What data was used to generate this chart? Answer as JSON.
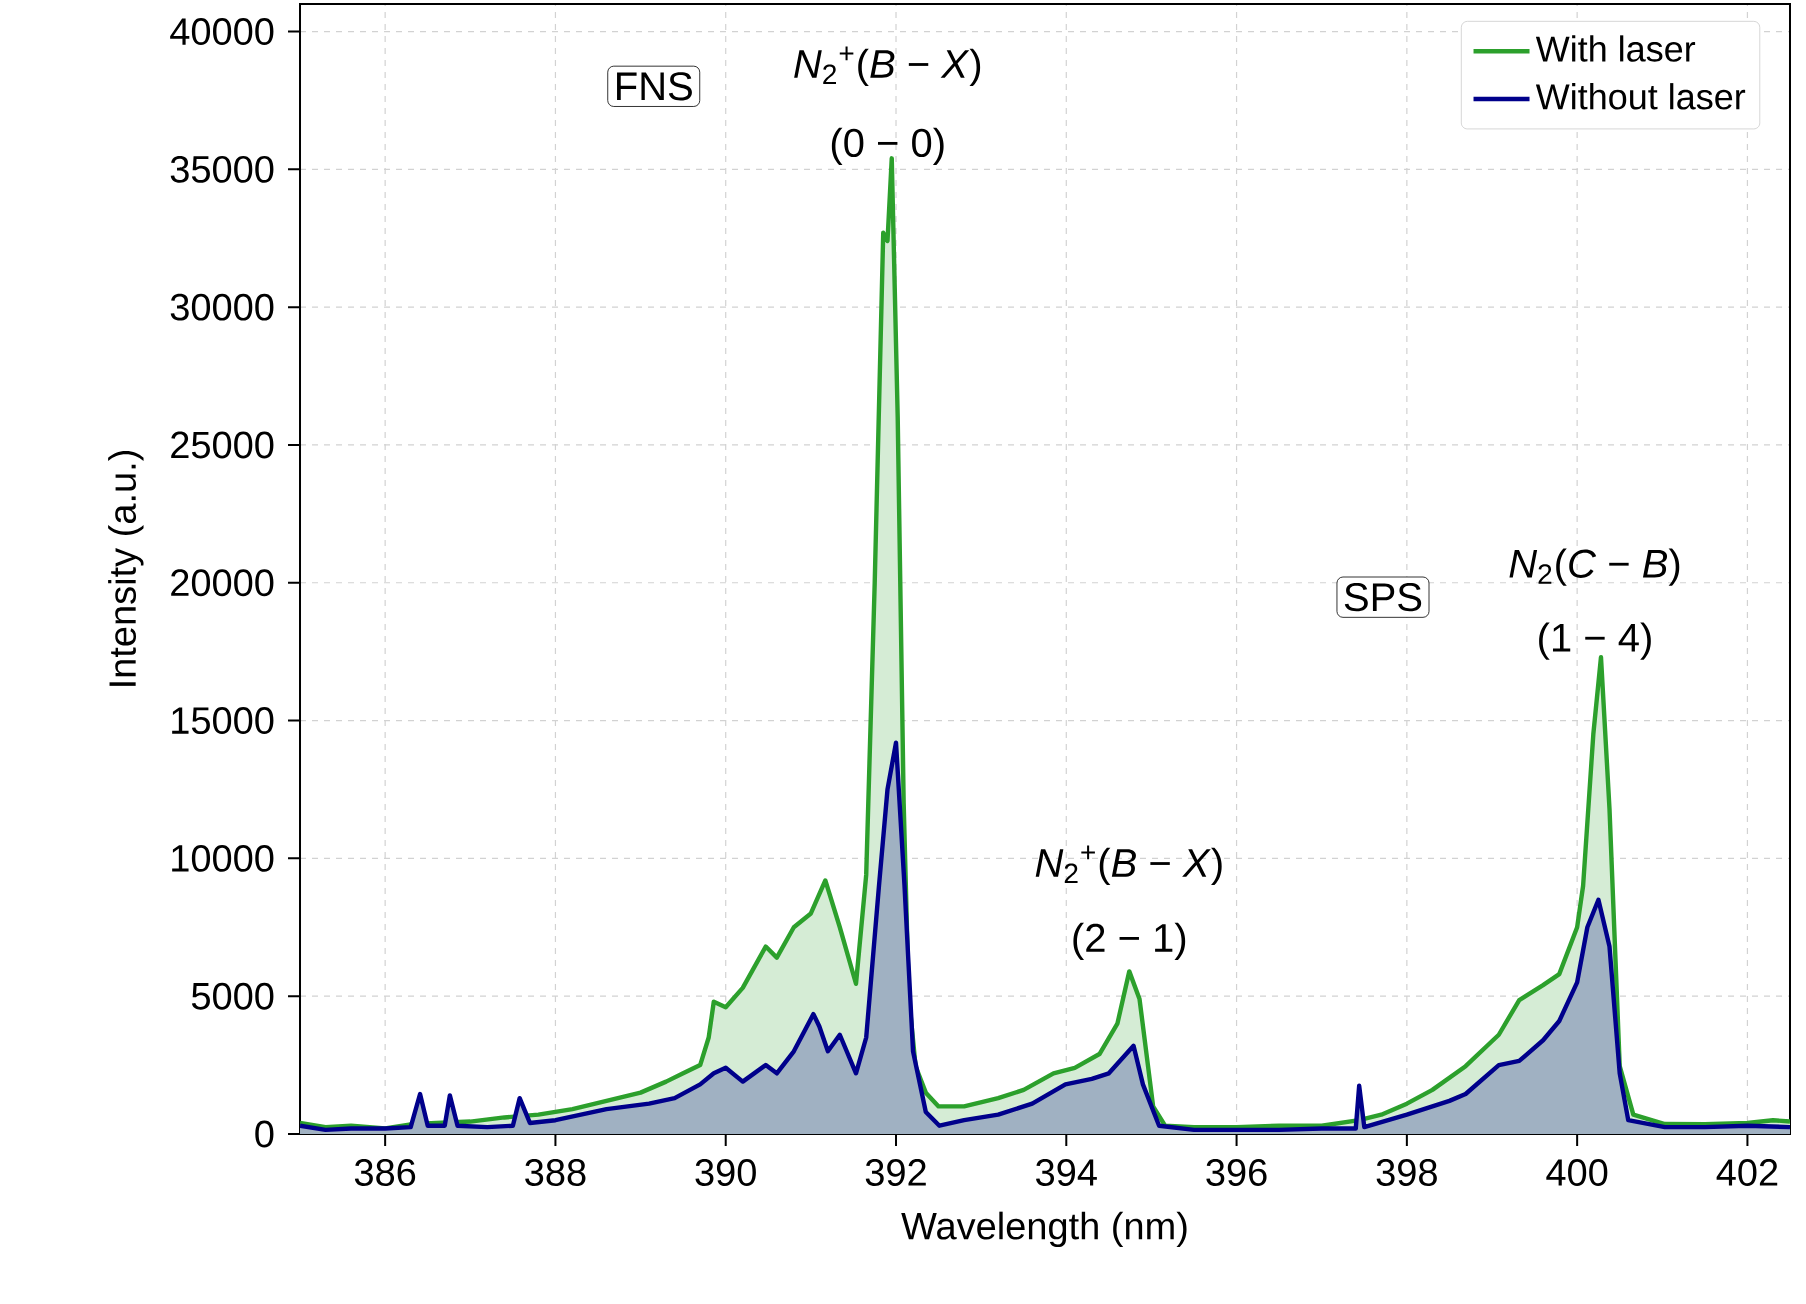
{
  "chart_data": {
    "type": "area",
    "xlabel": "Wavelength (nm)",
    "ylabel": "Intensity (a.u.)",
    "xlim": [
      385,
      402.5
    ],
    "ylim": [
      0,
      41000
    ],
    "xticks": [
      386,
      388,
      390,
      392,
      394,
      396,
      398,
      400,
      402
    ],
    "yticks": [
      0,
      5000,
      10000,
      15000,
      20000,
      25000,
      30000,
      35000,
      40000
    ],
    "grid": true,
    "legend": "top right",
    "series": [
      {
        "name": "With laser",
        "color": "#2ca02c",
        "x": [
          385.0,
          385.3,
          385.6,
          386.0,
          386.3,
          386.6,
          387.0,
          387.4,
          387.8,
          388.2,
          388.6,
          389.0,
          389.3,
          389.5,
          389.7,
          389.8,
          389.86,
          390.0,
          390.2,
          390.47,
          390.6,
          390.8,
          391.0,
          391.17,
          391.34,
          391.53,
          391.65,
          391.75,
          391.85,
          391.9,
          391.95,
          392.02,
          392.09,
          392.15,
          392.23,
          392.35,
          392.5,
          392.8,
          393.2,
          393.5,
          393.85,
          394.1,
          394.39,
          394.6,
          394.74,
          394.86,
          395.02,
          395.16,
          395.5,
          396.0,
          396.5,
          397.0,
          397.44,
          397.7,
          398.0,
          398.3,
          398.69,
          399.08,
          399.32,
          399.6,
          399.79,
          400.0,
          400.07,
          400.19,
          400.28,
          400.38,
          400.5,
          400.66,
          401.03,
          401.5,
          402.0,
          402.3,
          402.5
        ],
        "values": [
          400,
          250,
          300,
          200,
          350,
          400,
          450,
          600,
          700,
          900,
          1200,
          1500,
          1900,
          2200,
          2500,
          3500,
          4800,
          4600,
          5300,
          6800,
          6400,
          7500,
          8000,
          9200,
          7500,
          5450,
          9400,
          20000,
          32700,
          32400,
          35400,
          26000,
          12000,
          5000,
          2460,
          1500,
          1000,
          1000,
          1300,
          1600,
          2200,
          2400,
          2900,
          4000,
          5900,
          4900,
          1000,
          300,
          250,
          250,
          300,
          300,
          500,
          700,
          1100,
          1600,
          2460,
          3600,
          4860,
          5400,
          5800,
          7500,
          9000,
          14500,
          17300,
          11800,
          2460,
          700,
          360,
          350,
          400,
          500,
          450
        ]
      },
      {
        "name": "Without laser",
        "color": "#00008b",
        "x": [
          385.0,
          385.3,
          385.6,
          386.0,
          386.3,
          386.41,
          386.5,
          386.7,
          386.76,
          386.85,
          387.2,
          387.5,
          387.58,
          387.7,
          388.0,
          388.3,
          388.6,
          389.1,
          389.4,
          389.7,
          389.86,
          390.0,
          390.2,
          390.47,
          390.6,
          390.8,
          391.03,
          391.1,
          391.2,
          391.34,
          391.53,
          391.65,
          391.8,
          391.9,
          392.0,
          392.1,
          392.2,
          392.35,
          392.51,
          392.8,
          393.2,
          393.6,
          393.99,
          394.3,
          394.5,
          394.79,
          394.9,
          395.09,
          395.5,
          396.0,
          396.5,
          397.0,
          397.4,
          397.44,
          397.5,
          398.0,
          398.5,
          398.69,
          399.08,
          399.32,
          399.6,
          399.79,
          400.0,
          400.12,
          400.25,
          400.38,
          400.5,
          400.6,
          401.03,
          401.5,
          402.0,
          402.5
        ],
        "values": [
          300,
          150,
          200,
          200,
          250,
          1450,
          300,
          300,
          1400,
          300,
          250,
          300,
          1300,
          400,
          500,
          700,
          900,
          1100,
          1300,
          1800,
          2200,
          2400,
          1900,
          2500,
          2200,
          3000,
          4350,
          3900,
          3000,
          3600,
          2200,
          3500,
          9000,
          12500,
          14200,
          9000,
          3000,
          800,
          300,
          500,
          700,
          1100,
          1800,
          2000,
          2200,
          3200,
          1800,
          300,
          150,
          150,
          150,
          200,
          200,
          1750,
          250,
          700,
          1200,
          1450,
          2500,
          2650,
          3400,
          4100,
          5500,
          7500,
          8500,
          6800,
          2200,
          500,
          250,
          250,
          300,
          250
        ]
      }
    ],
    "annotations": [
      "FNS",
      {
        "text": "*N*$_{2}$$^{+}$(*B* − *X*)",
        "x": 391.95,
        "y": 35400
      },
      {
        "text": "(0 − 0)",
        "x": 391.95,
        "y": 35400
      },
      {
        "text": "*N*$_{2}$$^{+}$(*B* − *X*)",
        "x": 394.74,
        "y": 5900
      },
      {
        "text": "(2 − 1)",
        "x": 394.74,
        "y": 5900
      },
      "SPS",
      {
        "text": "*N*$_{2}$(*C* − *B*)",
        "x": 400.28,
        "y": 17300
      },
      {
        "text": "(1 − 4)",
        "x": 400.28,
        "y": 17300
      }
    ]
  }
}
